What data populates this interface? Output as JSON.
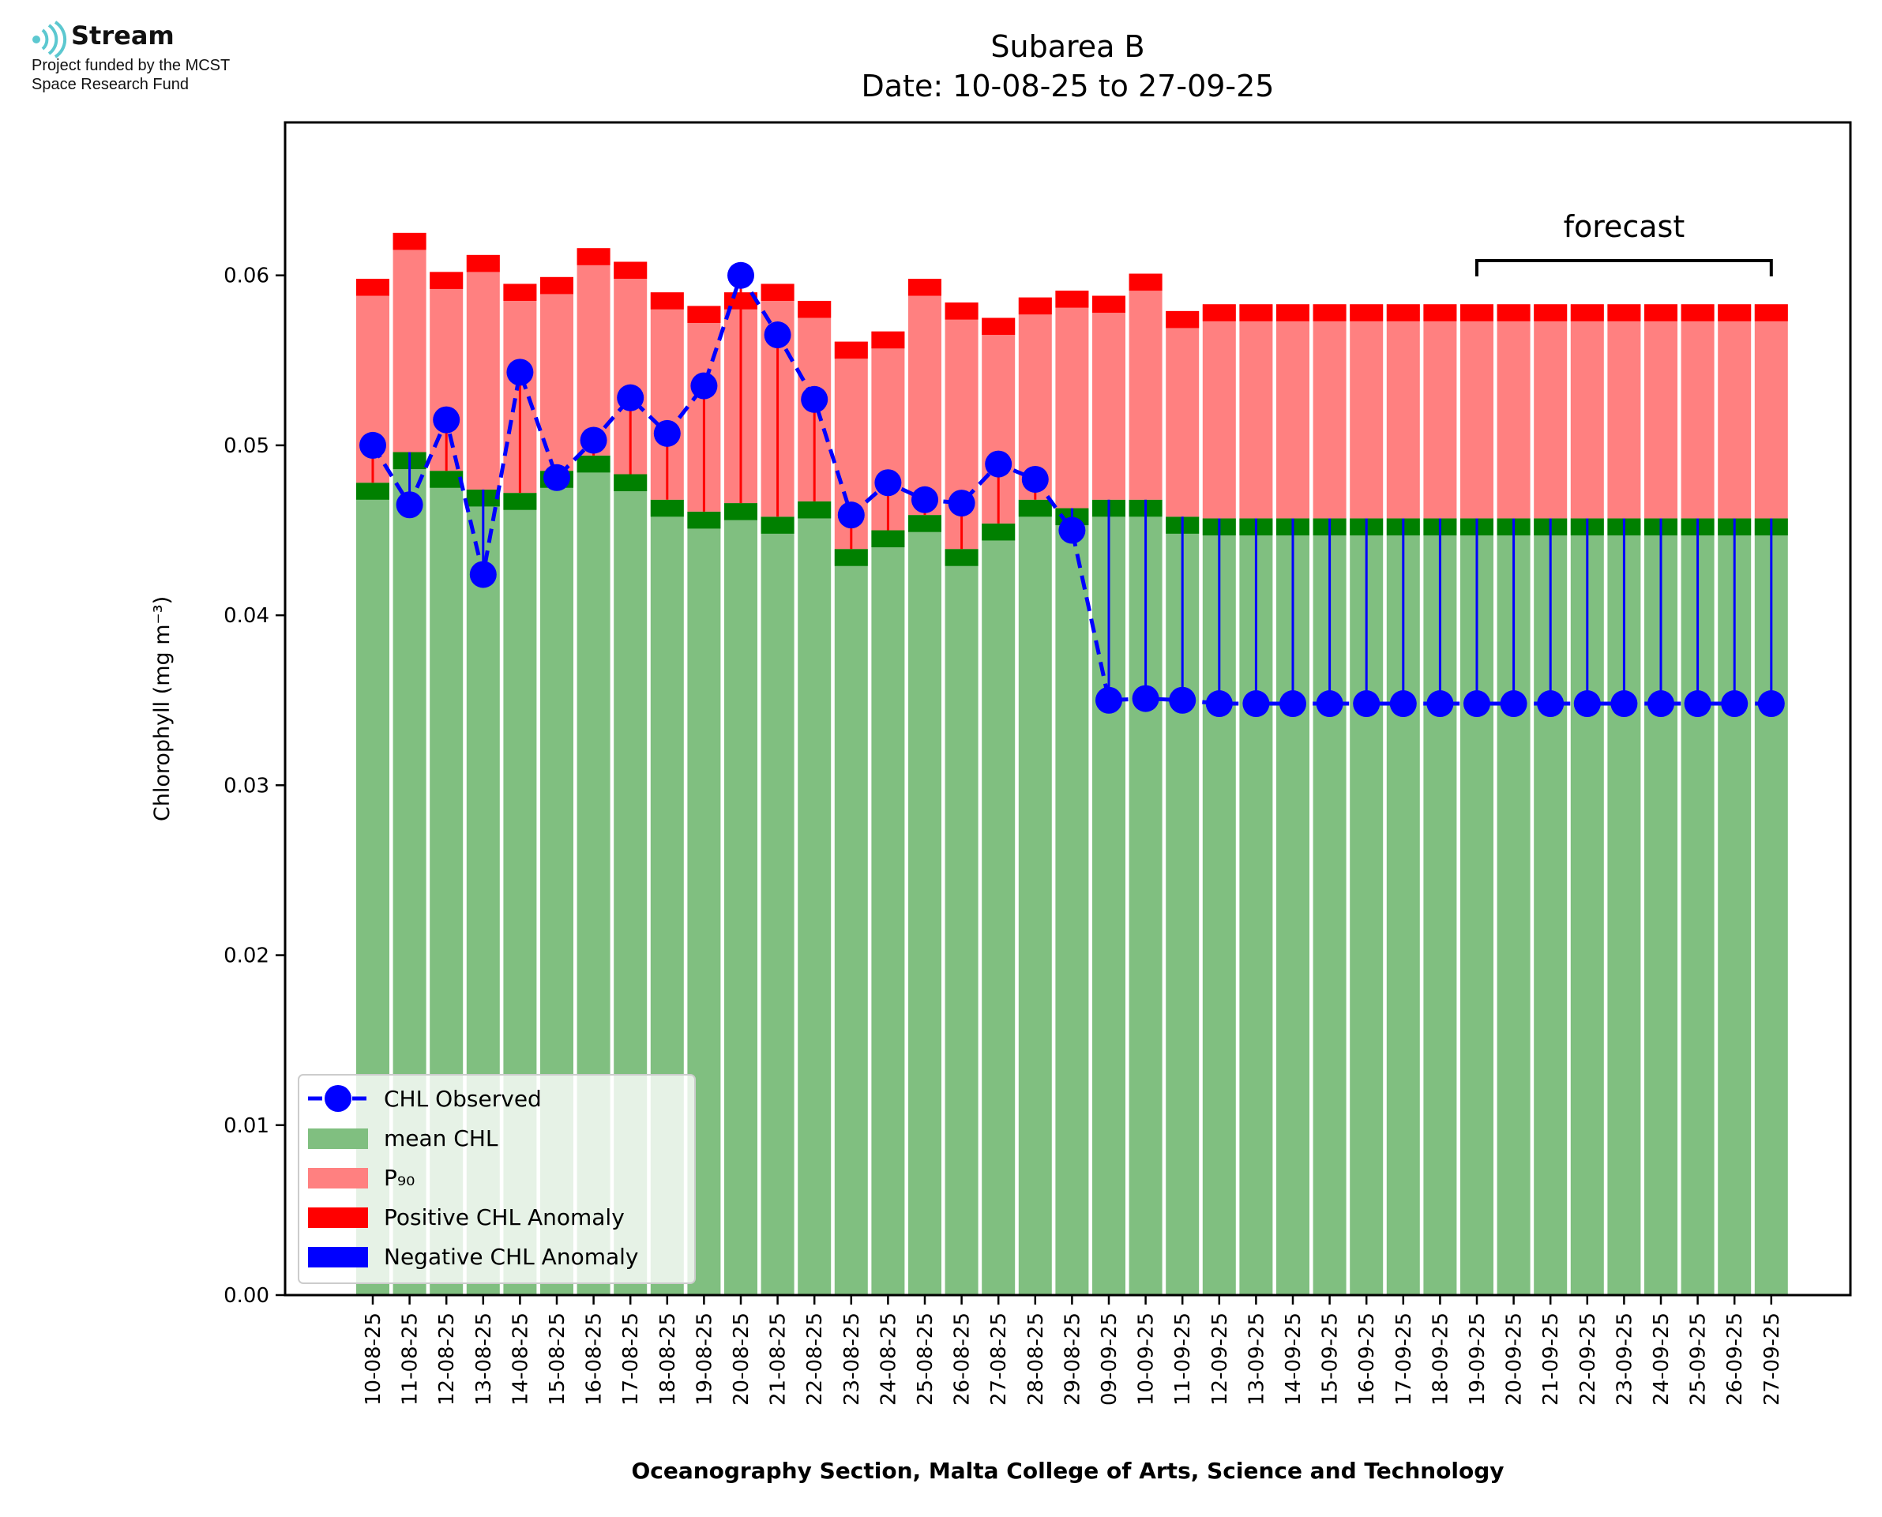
{
  "logo": {
    "name": "Stream",
    "line1": "Project funded by the MCST",
    "line2": "Space Research Fund",
    "color": "#5cc8d0"
  },
  "chart_data": {
    "type": "bar",
    "title": "Subarea B",
    "subtitle": "Date: 10-08-25 to 27-09-25",
    "xlabel": "Oceanography Section, Malta College of Arts, Science and Technology",
    "ylabel": "Chlorophyll (mg m⁻³)",
    "ylim": [
      0,
      0.069
    ],
    "yticks": [
      "0.00",
      "0.01",
      "0.02",
      "0.03",
      "0.04",
      "0.05",
      "0.06"
    ],
    "categories": [
      "10-08-25",
      "11-08-25",
      "12-08-25",
      "13-08-25",
      "14-08-25",
      "15-08-25",
      "16-08-25",
      "17-08-25",
      "18-08-25",
      "19-08-25",
      "20-08-25",
      "21-08-25",
      "22-08-25",
      "23-08-25",
      "24-08-25",
      "25-08-25",
      "26-08-25",
      "27-08-25",
      "28-08-25",
      "29-08-25",
      "09-09-25",
      "10-09-25",
      "11-09-25",
      "12-09-25",
      "13-09-25",
      "14-09-25",
      "15-09-25",
      "16-09-25",
      "17-09-25",
      "18-09-25",
      "19-09-25",
      "20-09-25",
      "21-09-25",
      "22-09-25",
      "23-09-25",
      "24-09-25",
      "25-09-25",
      "26-09-25",
      "27-09-25"
    ],
    "series": [
      {
        "name": "CHL Observed",
        "type": "line",
        "values": [
          0.05,
          0.0465,
          0.0515,
          0.0424,
          0.0543,
          0.0481,
          0.0503,
          0.0528,
          0.0507,
          0.0535,
          0.06,
          0.0565,
          0.0527,
          0.0459,
          0.0478,
          0.0468,
          0.0466,
          0.0489,
          0.048,
          0.045,
          0.035,
          0.0351,
          0.035,
          0.0348,
          0.0348,
          0.0348,
          0.0348,
          0.0348,
          0.0348,
          0.0348,
          0.0348,
          0.0348,
          0.0348,
          0.0348,
          0.0348,
          0.0348,
          0.0348,
          0.0348,
          0.0348
        ]
      },
      {
        "name": "mean CHL",
        "type": "bar",
        "values": [
          0.0478,
          0.0496,
          0.0485,
          0.0474,
          0.0472,
          0.0485,
          0.0494,
          0.0483,
          0.0468,
          0.0461,
          0.0466,
          0.0458,
          0.0467,
          0.0439,
          0.045,
          0.0459,
          0.0439,
          0.0454,
          0.0468,
          0.0463,
          0.0468,
          0.0468,
          0.0458,
          0.0457,
          0.0457,
          0.0457,
          0.0457,
          0.0457,
          0.0457,
          0.0457,
          0.0457,
          0.0457,
          0.0457,
          0.0457,
          0.0457,
          0.0457,
          0.0457,
          0.0457,
          0.0457
        ]
      },
      {
        "name": "P₉₀",
        "type": "bar",
        "values": [
          0.0598,
          0.0625,
          0.0602,
          0.0612,
          0.0595,
          0.0599,
          0.0616,
          0.0608,
          0.059,
          0.0582,
          0.059,
          0.0595,
          0.0585,
          0.0561,
          0.0567,
          0.0598,
          0.0584,
          0.0575,
          0.0587,
          0.0591,
          0.0588,
          0.0601,
          0.0579,
          0.0583,
          0.0583,
          0.0583,
          0.0583,
          0.0583,
          0.0583,
          0.0583,
          0.0583,
          0.0583,
          0.0583,
          0.0583,
          0.0583,
          0.0583,
          0.0583,
          0.0583,
          0.0583
        ]
      },
      {
        "name": "Positive CHL Anomaly",
        "type": "anomaly"
      },
      {
        "name": "Negative CHL Anomaly",
        "type": "anomaly"
      }
    ],
    "annotation": {
      "text": "forecast",
      "from": "19-09-25",
      "to": "27-09-25"
    },
    "legend_position": "lower-left",
    "colors": {
      "mean": "#80bf80",
      "mean_band": "#008000",
      "p90": "#ff8080",
      "p90_band": "#ff0000",
      "observed": "#0000ff",
      "positive": "#ff0000",
      "negative": "#0000ff"
    }
  }
}
